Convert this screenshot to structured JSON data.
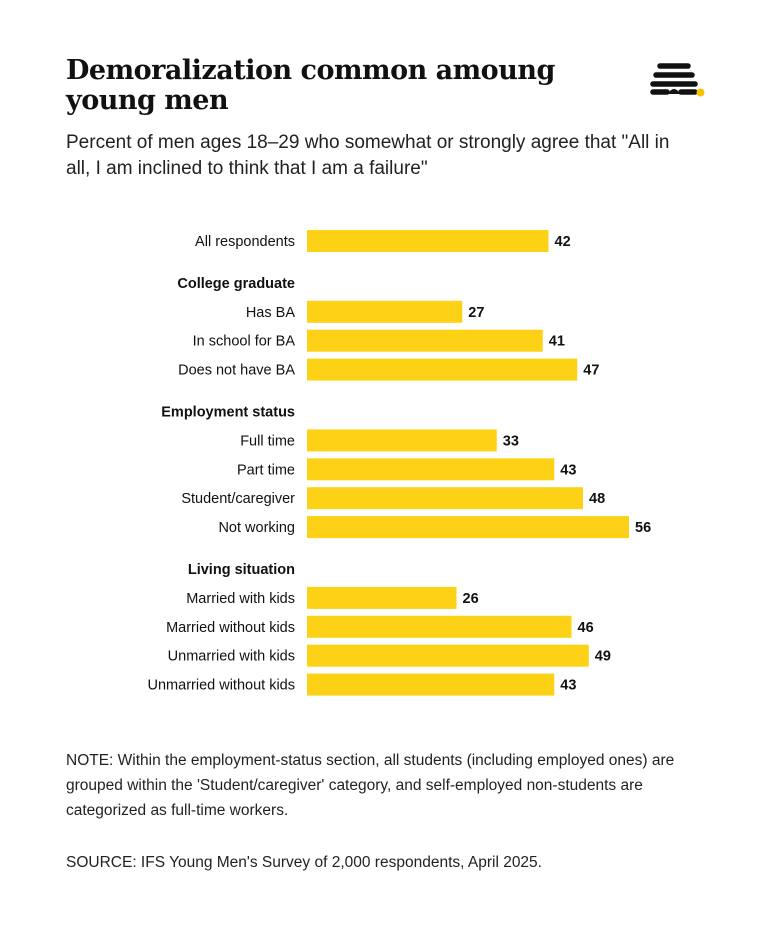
{
  "header": {
    "title": "Demoralization common amoung young men",
    "subtitle": "Percent of men ages 18–29 who somewhat or strongly agree that \"All in all, I am inclined to think that I am a failure\""
  },
  "logo": {
    "icon": "beehive-logo-icon",
    "accent_color": "#F5C400"
  },
  "chart_data": {
    "type": "bar",
    "orientation": "horizontal",
    "bar_color": "#FCD116",
    "xlim": [
      0,
      60
    ],
    "grid": false,
    "rows": [
      {
        "kind": "bar",
        "label": "All respondents",
        "value": 42
      },
      {
        "kind": "header",
        "label": "College graduate"
      },
      {
        "kind": "bar",
        "label": "Has BA",
        "value": 27
      },
      {
        "kind": "bar",
        "label": "In school for BA",
        "value": 41
      },
      {
        "kind": "bar",
        "label": "Does not have BA",
        "value": 47
      },
      {
        "kind": "header",
        "label": "Employment status"
      },
      {
        "kind": "bar",
        "label": "Full time",
        "value": 33
      },
      {
        "kind": "bar",
        "label": "Part time",
        "value": 43
      },
      {
        "kind": "bar",
        "label": "Student/caregiver",
        "value": 48
      },
      {
        "kind": "bar",
        "label": "Not working",
        "value": 56
      },
      {
        "kind": "header",
        "label": "Living situation"
      },
      {
        "kind": "bar",
        "label": "Married with kids",
        "value": 26
      },
      {
        "kind": "bar",
        "label": "Married without kids",
        "value": 46
      },
      {
        "kind": "bar",
        "label": "Unmarried with kids",
        "value": 49
      },
      {
        "kind": "bar",
        "label": "Unmarried without kids",
        "value": 43
      }
    ]
  },
  "footer": {
    "note": "NOTE: Within the employment-status section, all students (including employed ones) are grouped within the 'Student/caregiver' category, and self-employed non-students are categorized as full-time workers.",
    "source": "SOURCE: IFS Young Men's Survey of 2,000 respondents, April 2025."
  }
}
